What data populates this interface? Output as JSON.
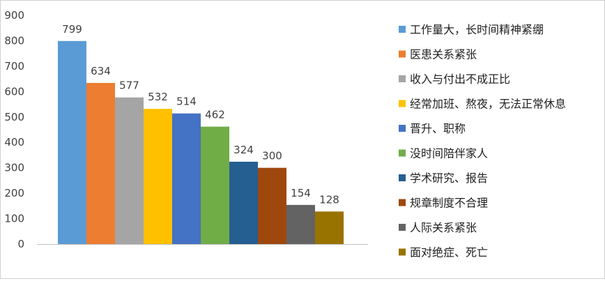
{
  "chart_data": {
    "type": "bar",
    "title": "",
    "xlabel": "",
    "ylabel": "",
    "ylim": [
      0,
      900
    ],
    "yticks": [
      0,
      100,
      200,
      300,
      400,
      500,
      600,
      700,
      800,
      900
    ],
    "grid": false,
    "legend_position": "right",
    "show_data_labels": true,
    "categories": [
      "工作量大，长时间精神紧绷",
      "医患关系紧张",
      "收入与付出不成正比",
      "经常加班、熬夜，无法正常休息",
      "晋升、职称",
      "没时间陪伴家人",
      "学术研究、报告",
      "规章制度不合理",
      "人际关系紧张",
      "面对绝症、死亡"
    ],
    "values": [
      799,
      634,
      577,
      532,
      514,
      462,
      324,
      300,
      154,
      128
    ],
    "colors": [
      "#5B9BD5",
      "#ED7D31",
      "#A5A5A5",
      "#FFC000",
      "#4472C4",
      "#70AD47",
      "#255E91",
      "#9E480E",
      "#636363",
      "#997300"
    ]
  }
}
